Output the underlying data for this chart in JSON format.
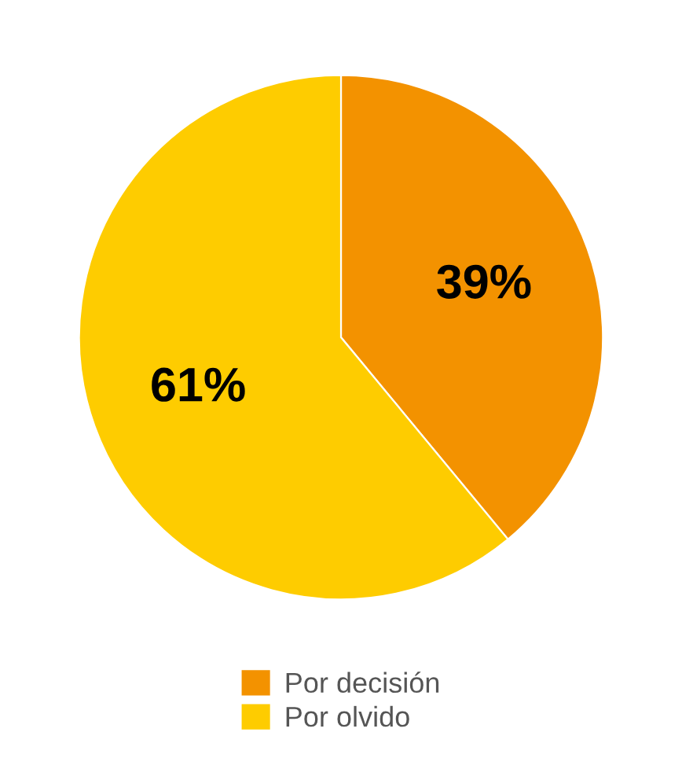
{
  "chart_data": {
    "type": "pie",
    "categories": [
      "Por decisión",
      "Por olvido"
    ],
    "values": [
      39,
      61
    ],
    "colors": [
      "#f39200",
      "#fecc00"
    ],
    "value_labels": [
      "39%",
      "61%"
    ],
    "legend": "bottom"
  }
}
